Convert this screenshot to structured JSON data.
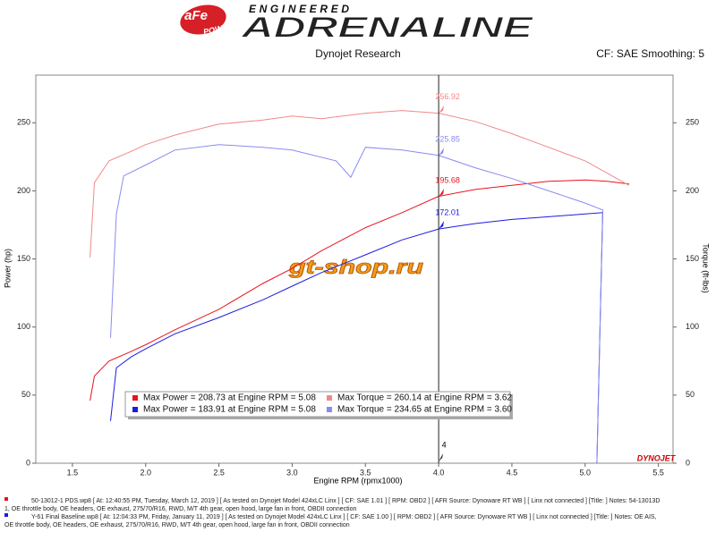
{
  "header": {
    "logo_top": "aFe",
    "logo_bottom": "POWER",
    "tagline_top": "ENGINEERED",
    "tagline": "ADRENALINE"
  },
  "chart_data": {
    "type": "line",
    "subtitle": "Dynojet Research",
    "settings_label": "CF: SAE Smoothing: 5",
    "x_label": "Engine RPM (rpmx1000)",
    "y_label": "Power (hp)",
    "y2_label": "Torque (ft-lbs)",
    "xlim": [
      1.25,
      5.6
    ],
    "xticks": [
      1.5,
      {
        "value": 2,
        "label": "2.0"
      },
      2.5,
      {
        "value": 3,
        "label": "3.0"
      },
      3.5,
      {
        "value": 4,
        "label": "4.0"
      },
      4.5,
      {
        "value": 5,
        "label": "5.0"
      },
      5.5
    ],
    "ylim": [
      0,
      285
    ],
    "yticks": [
      0,
      50,
      100,
      150,
      200,
      250
    ],
    "y2lim": [
      0,
      285
    ],
    "y2ticks": [
      0,
      50,
      100,
      150,
      200,
      250
    ],
    "grid": false,
    "cursor_x": 4,
    "series": [
      {
        "name": "Max Power = 208.73 at Engine RPM = 5.08",
        "color": "#e8141c",
        "cursor_value": 195.68,
        "x": [
          1.62,
          1.65,
          1.75,
          1.9,
          2.0,
          2.2,
          2.5,
          2.8,
          3.0,
          3.2,
          3.5,
          3.75,
          4.0,
          4.25,
          4.5,
          4.75,
          5.0,
          5.15,
          5.3
        ],
        "values": [
          46,
          64,
          75,
          82,
          87,
          98,
          113,
          132,
          143,
          156,
          173,
          184,
          196,
          201,
          204,
          207,
          208,
          207,
          205
        ]
      },
      {
        "name": "Max Torque = 260.14 at Engine RPM = 3.62",
        "color": "#f08a8a",
        "axis": "y2",
        "cursor_value": 256.92,
        "x": [
          1.62,
          1.65,
          1.75,
          1.9,
          2.0,
          2.2,
          2.5,
          2.8,
          3.0,
          3.2,
          3.5,
          3.75,
          4.0,
          4.25,
          4.5,
          4.75,
          5.0,
          5.15,
          5.3
        ],
        "values": [
          151,
          206,
          222,
          229,
          234,
          241,
          249,
          252,
          255,
          253,
          257,
          259,
          257,
          251,
          242,
          232,
          222,
          213,
          204
        ]
      },
      {
        "name": "Max Power = 183.91 at Engine RPM = 5.08",
        "color": "#1c1ce0",
        "cursor_value": 172.01,
        "x": [
          1.76,
          1.8,
          1.9,
          2.0,
          2.2,
          2.5,
          2.8,
          3.0,
          3.2,
          3.5,
          3.75,
          4.0,
          4.25,
          4.5,
          4.75,
          5.0,
          5.12,
          5.08
        ],
        "values": [
          31,
          70,
          78,
          84,
          95,
          107,
          120,
          130,
          140,
          153,
          164,
          172,
          176,
          179,
          181,
          183,
          184,
          0
        ]
      },
      {
        "name": "Max Torque = 234.65 at Engine RPM = 3.60",
        "color": "#8a8af0",
        "axis": "y2",
        "cursor_value": 225.85,
        "x": [
          1.76,
          1.8,
          1.85,
          2.0,
          2.2,
          2.5,
          2.8,
          3.0,
          3.3,
          3.4,
          3.5,
          3.75,
          4.0,
          4.25,
          4.5,
          4.75,
          5.0,
          5.12,
          5.08
        ],
        "values": [
          92,
          183,
          211,
          219,
          230,
          234,
          232,
          230,
          222,
          210,
          232,
          230,
          226,
          217,
          209,
          200,
          191,
          186,
          0
        ]
      }
    ],
    "watermark": "gt-shop.ru",
    "brand": "DYNOJET"
  },
  "footer": {
    "runs": [
      {
        "lines": [
          "50-13012-1 PDS.wp8 [ At: 12:40:55 PM, Tuesday, March 12, 2019 ] [ As tested on Dynojet Model 424xLC Linx ] [ CF: SAE 1.01 ] [ RPM: OBD2 ] [ AFR Source: Dynoware RT WB ] [ Linx not connected ] [Title: ]  Notes: 54-13013D",
          "1, OE throttle body, OE headers, OE exhaust, 275/70/R16, RWD, M/T 4th gear, open hood, large fan in front, OBDII connection"
        ]
      },
      {
        "lines": [
          "Y-61 Final Baseline.wp8 [ At: 12:04:33 PM, Friday, January 11, 2019 ] [ As tested on Dynojet Model 424xLC Linx ] [ CF: SAE 1.00 ] [ RPM: OBD2 ] [ AFR Source: Dynoware RT WB ] [ Linx not connected ] [Title: ]  Notes: OE AIS,",
          "OE throttle body, OE headers, OE exhaust, 275/70/R16, RWD, M/T 4th gear, open hood, large fan in front, OBDII connection"
        ]
      }
    ]
  }
}
